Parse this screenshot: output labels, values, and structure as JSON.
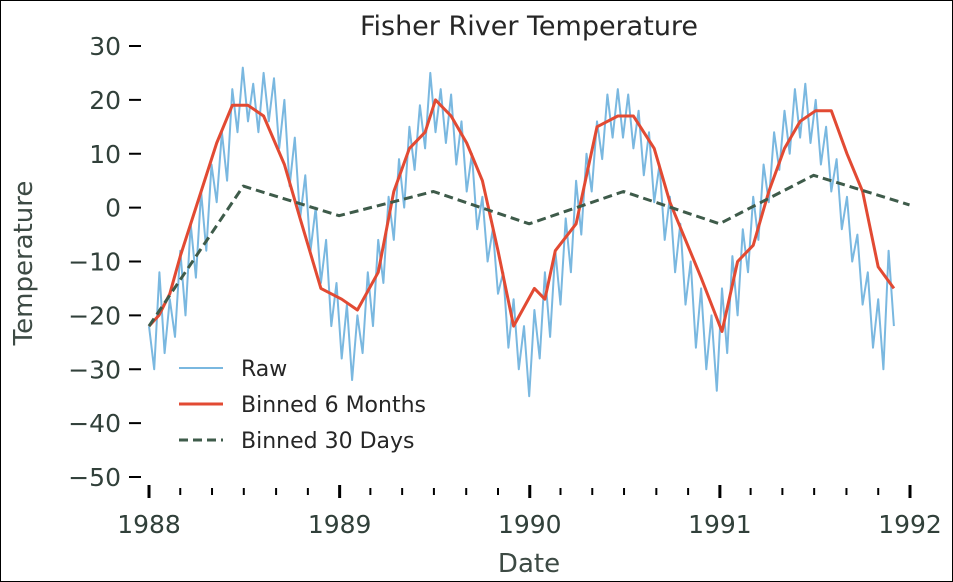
{
  "chart_data": {
    "type": "line",
    "title": "Fisher River Temperature",
    "xlabel": "Date",
    "ylabel": "Temperature",
    "xlim": [
      "1988-01-01",
      "1992-01-01"
    ],
    "ylim": [
      -50,
      30
    ],
    "x_ticks": [
      "1988",
      "1989",
      "1990",
      "1991",
      "1992"
    ],
    "y_ticks": [
      "30",
      "20",
      "10",
      "0",
      "−10",
      "−20",
      "−30",
      "−40",
      "−50"
    ],
    "grid": false,
    "legend_position": "lower-left",
    "series": [
      {
        "name": "Raw",
        "color": "#7ab8e0",
        "style": "solid",
        "x": [
          "1988-01-01",
          "1988-01-11",
          "1988-01-21",
          "1988-01-31",
          "1988-02-10",
          "1988-02-20",
          "1988-03-01",
          "1988-03-11",
          "1988-03-21",
          "1988-03-31",
          "1988-04-10",
          "1988-04-20",
          "1988-04-30",
          "1988-05-10",
          "1988-05-20",
          "1988-05-30",
          "1988-06-09",
          "1988-06-19",
          "1988-06-29",
          "1988-07-09",
          "1988-07-19",
          "1988-07-29",
          "1988-08-08",
          "1988-08-18",
          "1988-08-28",
          "1988-09-07",
          "1988-09-17",
          "1988-09-27",
          "1988-10-07",
          "1988-10-17",
          "1988-10-27",
          "1988-11-06",
          "1988-11-16",
          "1988-11-26",
          "1988-12-06",
          "1988-12-16",
          "1988-12-26",
          "1989-01-05",
          "1989-01-15",
          "1989-01-25",
          "1989-02-04",
          "1989-02-14",
          "1989-02-24",
          "1989-03-06",
          "1989-03-16",
          "1989-03-26",
          "1989-04-05",
          "1989-04-15",
          "1989-04-25",
          "1989-05-05",
          "1989-05-15",
          "1989-05-25",
          "1989-06-04",
          "1989-06-14",
          "1989-06-24",
          "1989-07-04",
          "1989-07-14",
          "1989-07-24",
          "1989-08-03",
          "1989-08-13",
          "1989-08-23",
          "1989-09-02",
          "1989-09-12",
          "1989-09-22",
          "1989-10-02",
          "1989-10-12",
          "1989-10-22",
          "1989-11-01",
          "1989-11-11",
          "1989-11-21",
          "1989-12-01",
          "1989-12-11",
          "1989-12-21",
          "1989-12-31",
          "1990-01-10",
          "1990-01-20",
          "1990-01-30",
          "1990-02-09",
          "1990-02-19",
          "1990-03-01",
          "1990-03-11",
          "1990-03-21",
          "1990-03-31",
          "1990-04-10",
          "1990-04-20",
          "1990-04-30",
          "1990-05-10",
          "1990-05-20",
          "1990-05-30",
          "1990-06-09",
          "1990-06-19",
          "1990-06-29",
          "1990-07-09",
          "1990-07-19",
          "1990-07-29",
          "1990-08-08",
          "1990-08-18",
          "1990-08-28",
          "1990-09-07",
          "1990-09-17",
          "1990-09-27",
          "1990-10-07",
          "1990-10-17",
          "1990-10-27",
          "1990-11-06",
          "1990-11-16",
          "1990-11-26",
          "1990-12-06",
          "1990-12-16",
          "1990-12-26",
          "1991-01-05",
          "1991-01-15",
          "1991-01-25",
          "1991-02-04",
          "1991-02-14",
          "1991-02-24",
          "1991-03-06",
          "1991-03-16",
          "1991-03-26",
          "1991-04-05",
          "1991-04-15",
          "1991-04-25",
          "1991-05-05",
          "1991-05-15",
          "1991-05-25",
          "1991-06-04",
          "1991-06-14",
          "1991-06-24",
          "1991-07-04",
          "1991-07-14",
          "1991-07-24",
          "1991-08-03",
          "1991-08-13",
          "1991-08-23",
          "1991-09-02",
          "1991-09-12",
          "1991-09-22",
          "1991-10-02",
          "1991-10-12",
          "1991-10-22",
          "1991-11-01",
          "1991-11-11",
          "1991-11-21",
          "1991-12-01"
        ],
        "values": [
          -22,
          -30,
          -12,
          -27,
          -17,
          -24,
          -8,
          -20,
          -3,
          -13,
          3,
          -8,
          8,
          1,
          14,
          5,
          22,
          14,
          26,
          16,
          23,
          14,
          25,
          16,
          24,
          11,
          20,
          4,
          13,
          -2,
          6,
          -8,
          0,
          -14,
          -6,
          -22,
          -14,
          -28,
          -18,
          -32,
          -20,
          -27,
          -12,
          -22,
          -6,
          -14,
          2,
          -6,
          9,
          0,
          15,
          7,
          19,
          11,
          25,
          14,
          22,
          12,
          21,
          8,
          16,
          3,
          10,
          -4,
          2,
          -10,
          -4,
          -16,
          -12,
          -26,
          -17,
          -30,
          -22,
          -35,
          -19,
          -28,
          -12,
          -24,
          -8,
          -18,
          -2,
          -12,
          5,
          -5,
          10,
          3,
          16,
          9,
          21,
          13,
          22,
          13,
          21,
          11,
          18,
          6,
          14,
          1,
          8,
          -6,
          2,
          -12,
          -3,
          -18,
          -10,
          -26,
          -15,
          -30,
          -20,
          -34,
          -15,
          -27,
          -9,
          -20,
          -4,
          -12,
          2,
          -6,
          8,
          1,
          14,
          7,
          18,
          10,
          22,
          13,
          23,
          12,
          20,
          8,
          15,
          3,
          9,
          -4,
          2,
          -10,
          -5,
          -18,
          -12,
          -26,
          -17,
          -30,
          -8,
          -22
        ]
      },
      {
        "name": "Binned 6 Months",
        "color": "#e24a33",
        "style": "solid",
        "x": [
          "1988-01-01",
          "1988-01-20",
          "1988-02-10",
          "1988-03-01",
          "1988-04-10",
          "1988-05-10",
          "1988-06-09",
          "1988-07-09",
          "1988-08-08",
          "1988-09-17",
          "1988-10-17",
          "1988-11-26",
          "1989-01-05",
          "1989-02-04",
          "1989-03-16",
          "1989-04-15",
          "1989-05-15",
          "1989-06-14",
          "1989-07-04",
          "1989-08-03",
          "1989-09-02",
          "1989-10-02",
          "1989-11-01",
          "1989-12-01",
          "1990-01-10",
          "1990-01-30",
          "1990-02-19",
          "1990-03-31",
          "1990-05-10",
          "1990-06-19",
          "1990-07-19",
          "1990-08-28",
          "1990-09-27",
          "1990-10-27",
          "1990-11-26",
          "1991-01-05",
          "1991-02-04",
          "1991-03-06",
          "1991-04-05",
          "1991-05-05",
          "1991-06-04",
          "1991-07-04",
          "1991-08-03",
          "1991-09-02",
          "1991-10-02",
          "1991-11-01",
          "1991-12-01"
        ],
        "values": [
          -22,
          -20,
          -16,
          -9,
          3,
          12,
          19,
          19,
          17,
          8,
          -2,
          -15,
          -17,
          -19,
          -12,
          3,
          11,
          14,
          20,
          17,
          12,
          5,
          -8,
          -22,
          -15,
          -17,
          -8,
          -3,
          15,
          17,
          17,
          11,
          1,
          -6,
          -13,
          -23,
          -10,
          -7,
          3,
          11,
          16,
          18,
          18,
          10,
          3,
          -11,
          -15
        ]
      },
      {
        "name": "Binned 30 Days",
        "color": "#3e5b4a",
        "style": "dashed",
        "x": [
          "1988-01-01",
          "1988-06-30",
          "1988-12-31",
          "1989-06-30",
          "1989-12-31",
          "1990-06-30",
          "1990-12-31",
          "1991-06-30",
          "1991-12-31"
        ],
        "values": [
          -22,
          4,
          -1.5,
          3,
          -3,
          3,
          -3,
          6,
          0.5
        ]
      }
    ]
  }
}
